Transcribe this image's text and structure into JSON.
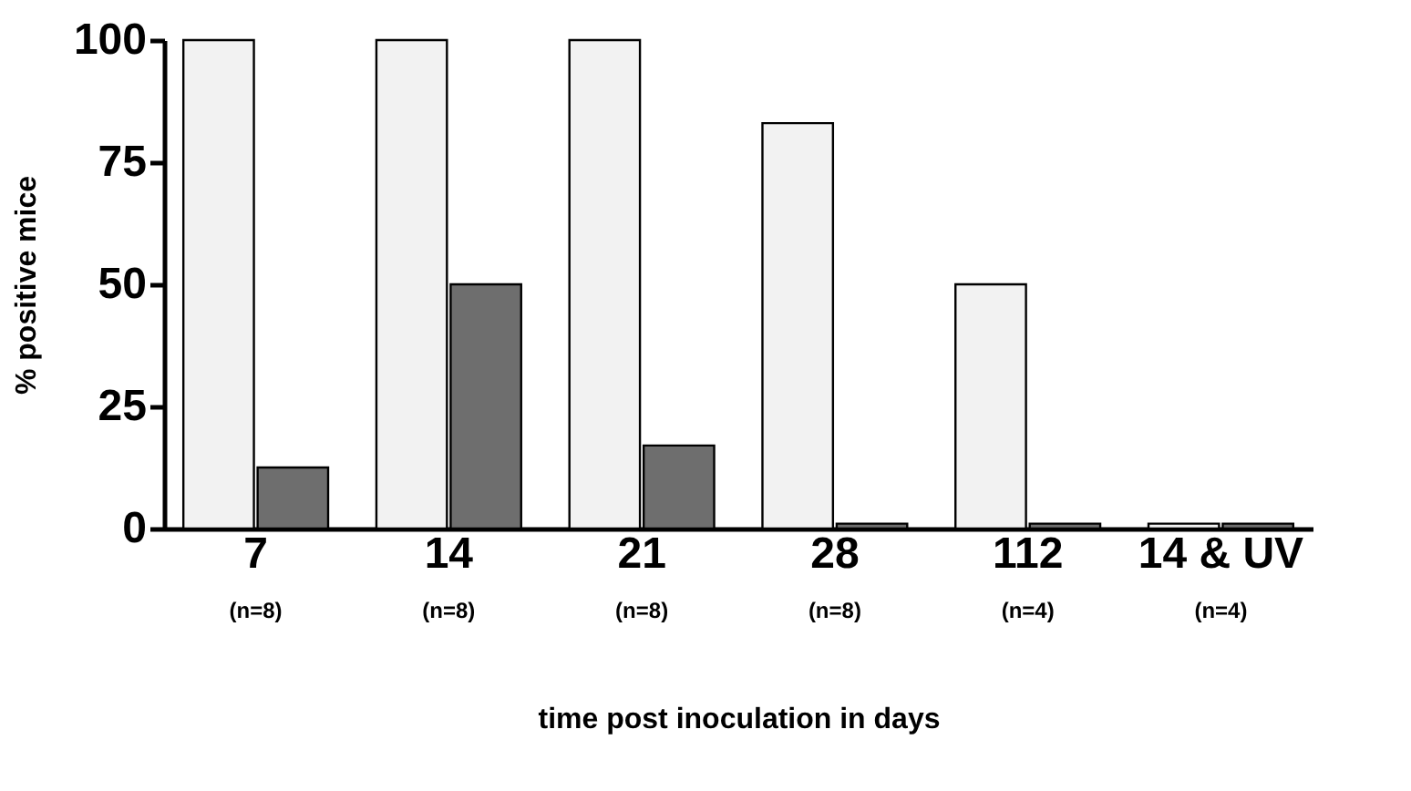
{
  "chart_data": {
    "type": "bar",
    "xlabel": "time post inoculation in days",
    "ylabel": "% positive mice",
    "categories": [
      "7",
      "14",
      "21",
      "28",
      "112",
      "14 & UV"
    ],
    "series": [
      {
        "color": "#f2f2f2",
        "values": [
          100,
          100,
          100,
          83,
          50,
          1
        ]
      },
      {
        "color": "#6e6e6e",
        "values": [
          12.5,
          50,
          17,
          1,
          1,
          1
        ]
      }
    ],
    "ylim": [
      0,
      100
    ],
    "yticks": [
      0,
      25,
      50,
      75,
      100
    ],
    "grid": false,
    "legend": false,
    "annotations": [
      "(n=8)",
      "(n=8)",
      "(n=8)",
      "(n=8)",
      "(n=4)",
      "(n=4)"
    ]
  }
}
